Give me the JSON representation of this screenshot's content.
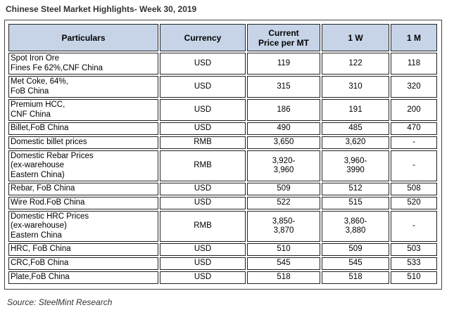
{
  "title": "Chinese Steel Market Highlights- Week 30, 2019",
  "headers": [
    "Particulars",
    "Currency",
    "Current\nPrice per MT",
    "1 W",
    "1 M"
  ],
  "rows": [
    {
      "particulars": "Spot Iron Ore\nFines Fe 62%,CNF China",
      "currency": "USD",
      "current": "119",
      "w1": "122",
      "m1": "118"
    },
    {
      "particulars": "Met Coke, 64%,\nFoB China",
      "currency": "USD",
      "current": "315",
      "w1": "310",
      "m1": "320"
    },
    {
      "particulars": "Premium HCC,\nCNF China",
      "currency": "USD",
      "current": "186",
      "w1": "191",
      "m1": "200"
    },
    {
      "particulars": "Billet,FoB China",
      "currency": "USD",
      "current": "490",
      "w1": "485",
      "m1": "470"
    },
    {
      "particulars": "Domestic billet prices",
      "currency": "RMB",
      "current": "3,650",
      "w1": "3,620",
      "m1": "-"
    },
    {
      "particulars": "Domestic Rebar Prices\n(ex-warehouse\nEastern China)",
      "currency": "RMB",
      "current": "3,920-\n3,960",
      "w1": "3,960-\n3990",
      "m1": "-"
    },
    {
      "particulars": "Rebar, FoB China",
      "currency": "USD",
      "current": "509",
      "w1": "512",
      "m1": "508"
    },
    {
      "particulars": "Wire Rod.FoB China",
      "currency": "USD",
      "current": "522",
      "w1": "515",
      "m1": "520"
    },
    {
      "particulars": "Domestic HRC Prices\n(ex-warehouse)\nEastern China",
      "currency": "RMB",
      "current": "3,850-\n3,870",
      "w1": "3,860-\n3,880",
      "m1": "-"
    },
    {
      "particulars": "HRC, FoB China",
      "currency": "USD",
      "current": "510",
      "w1": "509",
      "m1": "503"
    },
    {
      "particulars": "CRC,FoB China",
      "currency": "USD",
      "current": "545",
      "w1": "545",
      "m1": "533"
    },
    {
      "particulars": "Plate,FoB China",
      "currency": "USD",
      "current": "518",
      "w1": "518",
      "m1": "510"
    }
  ],
  "source": "Source: SteelMint Research",
  "colors": {
    "header_bg": "#c7d4e8",
    "border": "#222222"
  }
}
